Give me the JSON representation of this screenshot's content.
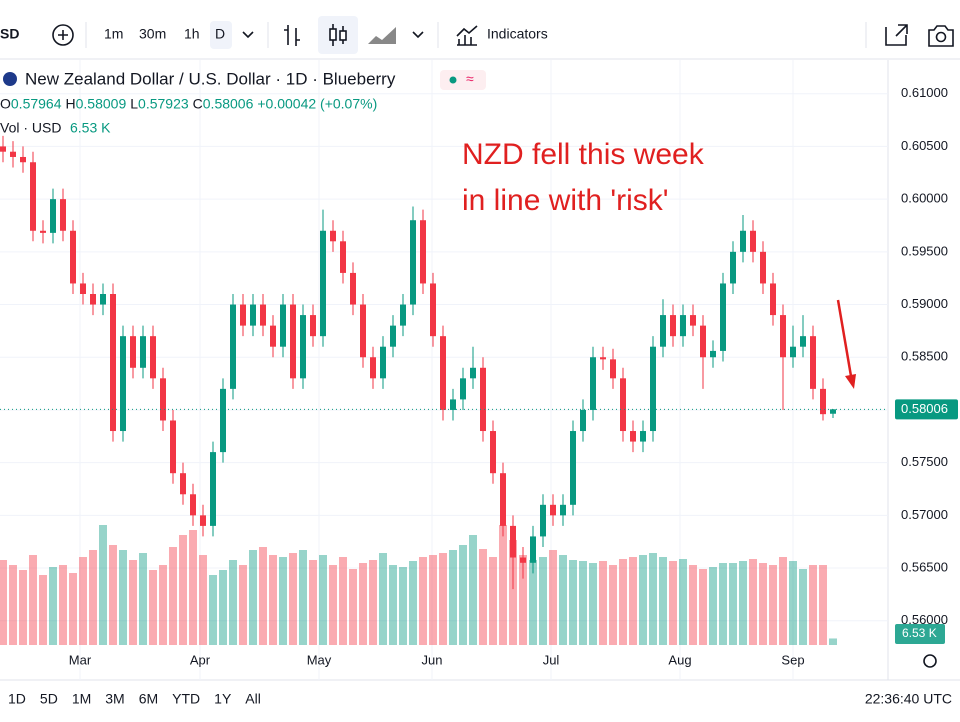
{
  "toolbar": {
    "symbol": "SD",
    "intervals": [
      "1m",
      "30m",
      "1h",
      "D"
    ],
    "indicators": "Indicators"
  },
  "legend": {
    "title": "New Zealand Dollar / U.S. Dollar · 1D · Blueberry",
    "ohlc": [
      {
        "key": "O",
        "value": "0.57964"
      },
      {
        "key": "H",
        "value": "0.58009"
      },
      {
        "key": "L",
        "value": "0.57923"
      },
      {
        "key": "C",
        "value": "0.58006"
      }
    ],
    "change": "+0.00042 (+0.07%)",
    "volume_name": "Vol · USD",
    "volume_value": "6.53 K"
  },
  "chart_data": {
    "type": "candlestick",
    "annotations": [
      "NZD fell this week",
      "in line with 'risk'"
    ],
    "up_color": "#089981",
    "down_color": "#f23645",
    "annotation_color": "#e02020",
    "months": [
      "Mar",
      "Apr",
      "May",
      "Jun",
      "Jul",
      "Aug",
      "Sep"
    ],
    "ylim": [
      0.5577,
      0.6132
    ],
    "yticks": [
      {
        "value": 0.56,
        "label": "0.56000"
      },
      {
        "value": 0.565,
        "label": "0.56500"
      },
      {
        "value": 0.57,
        "label": "0.57000"
      },
      {
        "value": 0.575,
        "label": "0.57500"
      },
      {
        "value": 0.58,
        "label": "0.58000"
      },
      {
        "value": 0.585,
        "label": "0.58500"
      },
      {
        "value": 0.59,
        "label": "0.59000"
      },
      {
        "value": 0.595,
        "label": "0.59500"
      },
      {
        "value": 0.6,
        "label": "0.60000"
      },
      {
        "value": 0.605,
        "label": "0.60500"
      },
      {
        "value": 0.61,
        "label": "0.61000"
      }
    ],
    "grid": true,
    "last_price_label": "0.58006",
    "candles": [
      [
        0.605,
        0.606,
        0.6035,
        0.6045
      ],
      [
        0.6045,
        0.6055,
        0.603,
        0.604
      ],
      [
        0.604,
        0.605,
        0.6025,
        0.6035
      ],
      [
        0.6035,
        0.6045,
        0.596,
        0.597
      ],
      [
        0.597,
        0.598,
        0.5958,
        0.5968
      ],
      [
        0.5968,
        0.601,
        0.5958,
        0.6
      ],
      [
        0.6,
        0.601,
        0.596,
        0.597
      ],
      [
        0.597,
        0.598,
        0.591,
        0.592
      ],
      [
        0.592,
        0.593,
        0.59,
        0.591
      ],
      [
        0.591,
        0.592,
        0.589,
        0.59
      ],
      [
        0.59,
        0.592,
        0.589,
        0.591
      ],
      [
        0.591,
        0.592,
        0.577,
        0.578
      ],
      [
        0.578,
        0.588,
        0.577,
        0.587
      ],
      [
        0.587,
        0.588,
        0.583,
        0.584
      ],
      [
        0.584,
        0.588,
        0.583,
        0.587
      ],
      [
        0.587,
        0.588,
        0.582,
        0.583
      ],
      [
        0.583,
        0.584,
        0.578,
        0.579
      ],
      [
        0.579,
        0.58,
        0.573,
        0.574
      ],
      [
        0.574,
        0.575,
        0.571,
        0.572
      ],
      [
        0.572,
        0.573,
        0.569,
        0.57
      ],
      [
        0.57,
        0.571,
        0.568,
        0.569
      ],
      [
        0.569,
        0.577,
        0.568,
        0.576
      ],
      [
        0.576,
        0.583,
        0.575,
        0.582
      ],
      [
        0.582,
        0.591,
        0.581,
        0.59
      ],
      [
        0.59,
        0.591,
        0.587,
        0.588
      ],
      [
        0.588,
        0.591,
        0.587,
        0.59
      ],
      [
        0.59,
        0.591,
        0.587,
        0.588
      ],
      [
        0.588,
        0.589,
        0.585,
        0.586
      ],
      [
        0.586,
        0.591,
        0.585,
        0.59
      ],
      [
        0.59,
        0.591,
        0.582,
        0.583
      ],
      [
        0.583,
        0.59,
        0.582,
        0.589
      ],
      [
        0.589,
        0.59,
        0.586,
        0.587
      ],
      [
        0.587,
        0.599,
        0.586,
        0.597
      ],
      [
        0.597,
        0.598,
        0.595,
        0.596
      ],
      [
        0.596,
        0.597,
        0.592,
        0.593
      ],
      [
        0.593,
        0.594,
        0.589,
        0.59
      ],
      [
        0.59,
        0.591,
        0.584,
        0.585
      ],
      [
        0.585,
        0.586,
        0.582,
        0.583
      ],
      [
        0.583,
        0.587,
        0.582,
        0.586
      ],
      [
        0.586,
        0.589,
        0.585,
        0.588
      ],
      [
        0.588,
        0.591,
        0.587,
        0.59
      ],
      [
        0.59,
        0.5993,
        0.589,
        0.598
      ],
      [
        0.598,
        0.599,
        0.591,
        0.592
      ],
      [
        0.592,
        0.593,
        0.586,
        0.587
      ],
      [
        0.587,
        0.588,
        0.579,
        0.58
      ],
      [
        0.58,
        0.582,
        0.579,
        0.581
      ],
      [
        0.581,
        0.584,
        0.58,
        0.583
      ],
      [
        0.583,
        0.586,
        0.582,
        0.584
      ],
      [
        0.584,
        0.585,
        0.577,
        0.578
      ],
      [
        0.578,
        0.579,
        0.573,
        0.574
      ],
      [
        0.574,
        0.575,
        0.568,
        0.569
      ],
      [
        0.569,
        0.57,
        0.563,
        0.566
      ],
      [
        0.566,
        0.567,
        0.564,
        0.5655
      ],
      [
        0.5655,
        0.569,
        0.5645,
        0.568
      ],
      [
        0.568,
        0.572,
        0.567,
        0.571
      ],
      [
        0.571,
        0.572,
        0.569,
        0.57
      ],
      [
        0.57,
        0.572,
        0.569,
        0.571
      ],
      [
        0.571,
        0.579,
        0.57,
        0.578
      ],
      [
        0.578,
        0.581,
        0.577,
        0.58
      ],
      [
        0.58,
        0.586,
        0.579,
        0.585
      ],
      [
        0.585,
        0.586,
        0.5838,
        0.5848
      ],
      [
        0.5848,
        0.5858,
        0.582,
        0.583
      ],
      [
        0.583,
        0.584,
        0.577,
        0.578
      ],
      [
        0.578,
        0.579,
        0.576,
        0.577
      ],
      [
        0.577,
        0.579,
        0.576,
        0.578
      ],
      [
        0.578,
        0.587,
        0.577,
        0.586
      ],
      [
        0.586,
        0.5905,
        0.585,
        0.589
      ],
      [
        0.589,
        0.59,
        0.586,
        0.587
      ],
      [
        0.587,
        0.59,
        0.586,
        0.589
      ],
      [
        0.589,
        0.59,
        0.587,
        0.588
      ],
      [
        0.588,
        0.589,
        0.582,
        0.585
      ],
      [
        0.585,
        0.5866,
        0.584,
        0.5856
      ],
      [
        0.5856,
        0.593,
        0.5846,
        0.592
      ],
      [
        0.592,
        0.596,
        0.591,
        0.595
      ],
      [
        0.595,
        0.5985,
        0.594,
        0.597
      ],
      [
        0.597,
        0.598,
        0.594,
        0.595
      ],
      [
        0.595,
        0.596,
        0.591,
        0.592
      ],
      [
        0.592,
        0.593,
        0.588,
        0.589
      ],
      [
        0.589,
        0.59,
        0.58,
        0.585
      ],
      [
        0.585,
        0.588,
        0.584,
        0.586
      ],
      [
        0.586,
        0.589,
        0.585,
        0.587
      ],
      [
        0.587,
        0.588,
        0.581,
        0.582
      ],
      [
        0.582,
        0.583,
        0.579,
        0.5796
      ],
      [
        0.57964,
        0.58009,
        0.57923,
        0.58006
      ]
    ],
    "volumes": [
      85000,
      80000,
      75000,
      90000,
      70000,
      78000,
      80000,
      72000,
      88000,
      95000,
      120000,
      100000,
      95000,
      85000,
      92000,
      75000,
      80000,
      98000,
      110000,
      115000,
      90000,
      70000,
      75000,
      85000,
      80000,
      95000,
      98000,
      90000,
      88000,
      92000,
      95000,
      85000,
      90000,
      80000,
      88000,
      76000,
      82000,
      85000,
      92000,
      80000,
      78000,
      84000,
      88000,
      90000,
      92000,
      95000,
      100000,
      110000,
      96000,
      88000,
      120000,
      105000,
      90000,
      85000,
      88000,
      95000,
      90000,
      85000,
      84000,
      82000,
      84000,
      80000,
      86000,
      88000,
      90000,
      92000,
      88000,
      84000,
      86000,
      80000,
      76000,
      78000,
      82000,
      82000,
      84000,
      86000,
      82000,
      80000,
      88000,
      84000,
      76000,
      80000,
      80000,
      6530
    ],
    "volume_value_labels": {
      "83": "6.53 K"
    }
  },
  "footer": {
    "ranges": [
      "1D",
      "5D",
      "1M",
      "3M",
      "6M",
      "YTD",
      "1Y",
      "All"
    ],
    "time": "22:36:40 UTC"
  }
}
